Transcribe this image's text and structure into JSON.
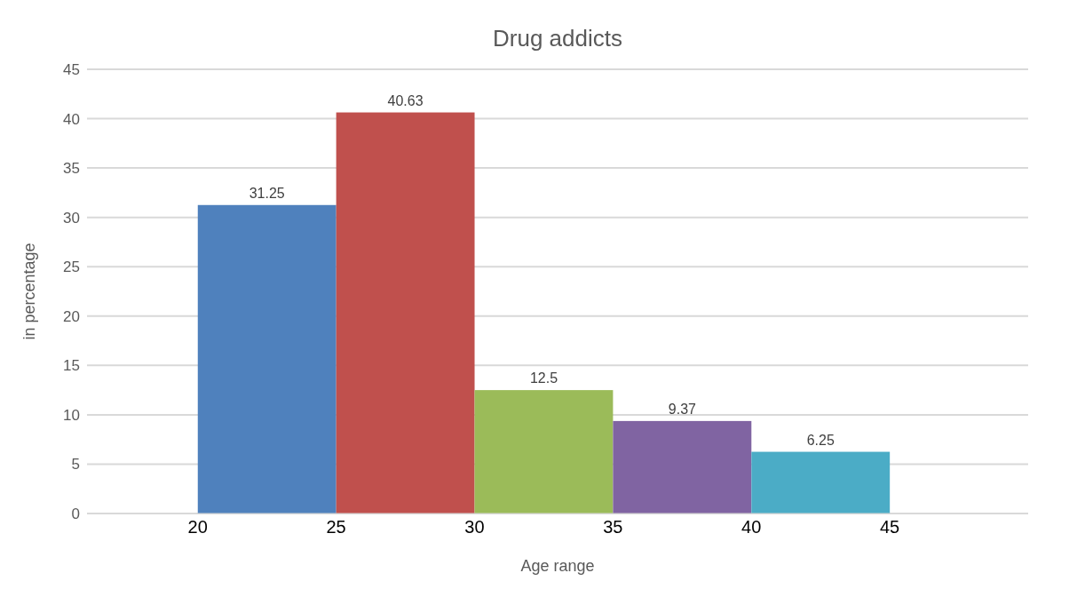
{
  "chart_data": {
    "type": "histogram",
    "title": "Drug addicts",
    "xlabel": "Age range",
    "ylabel": "in percentage",
    "bins": [
      20,
      25,
      30,
      35,
      40,
      45
    ],
    "values": [
      31.25,
      40.63,
      12.5,
      9.37,
      6.25
    ],
    "colors": [
      "#4f81bd",
      "#c0504d",
      "#9bbb59",
      "#8064a2",
      "#4bacc6"
    ],
    "xlim": [
      16,
      50
    ],
    "xticks": [
      20,
      25,
      30,
      35,
      40,
      45
    ],
    "ylim": [
      0,
      45
    ],
    "yticks": [
      0,
      5,
      10,
      15,
      20,
      25,
      30,
      35,
      40,
      45
    ],
    "grid": "y",
    "data_labels": true
  }
}
